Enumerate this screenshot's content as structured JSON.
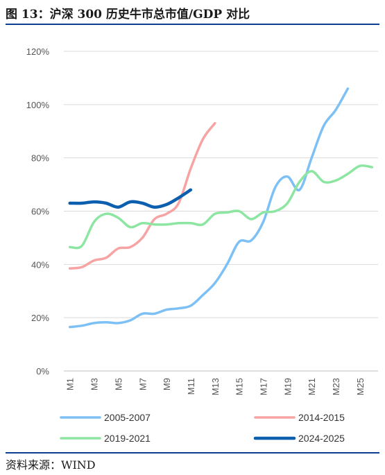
{
  "figure": {
    "title": "图 13：沪深 300 历史牛市总市值/GDP 对比",
    "source": "资料来源：WIND"
  },
  "chart_data": {
    "type": "line",
    "ylim": [
      0,
      120
    ],
    "yticks": [
      "0%",
      "20%",
      "40%",
      "60%",
      "80%",
      "100%",
      "120%"
    ],
    "x_tick_labels": [
      "M1",
      "M3",
      "M5",
      "M7",
      "M9",
      "M11",
      "M13",
      "M15",
      "M17",
      "M19",
      "M21",
      "M23",
      "M25"
    ],
    "x_count": 26,
    "grid": true,
    "legend_position": "bottom",
    "series": [
      {
        "name": "2005-2007",
        "color": "#7cc0f5",
        "values": [
          16.5,
          17,
          18,
          18.3,
          18,
          19,
          21.5,
          21.5,
          23,
          23.5,
          24.5,
          28.5,
          33,
          40,
          48.5,
          49,
          56,
          69,
          73,
          68,
          80,
          92,
          98,
          106
        ]
      },
      {
        "name": "2014-2015",
        "color": "#f7a3a3",
        "values": [
          38.5,
          39,
          41.5,
          42.5,
          46,
          46.5,
          50,
          57,
          59,
          63,
          76,
          87,
          93
        ]
      },
      {
        "name": "2019-2021",
        "color": "#8ce6a2",
        "values": [
          46.5,
          47,
          56,
          59,
          57.5,
          54,
          55.5,
          55,
          55,
          55.5,
          55.5,
          55,
          59,
          59.5,
          60,
          57,
          59.5,
          60,
          63,
          71,
          75,
          71,
          71.5,
          74,
          77,
          76.5
        ]
      },
      {
        "name": "2024-2025",
        "color": "#0b5fae",
        "values": [
          63,
          63,
          63.5,
          63,
          61.5,
          63.5,
          63,
          61.5,
          62.5,
          65,
          68
        ]
      }
    ]
  }
}
